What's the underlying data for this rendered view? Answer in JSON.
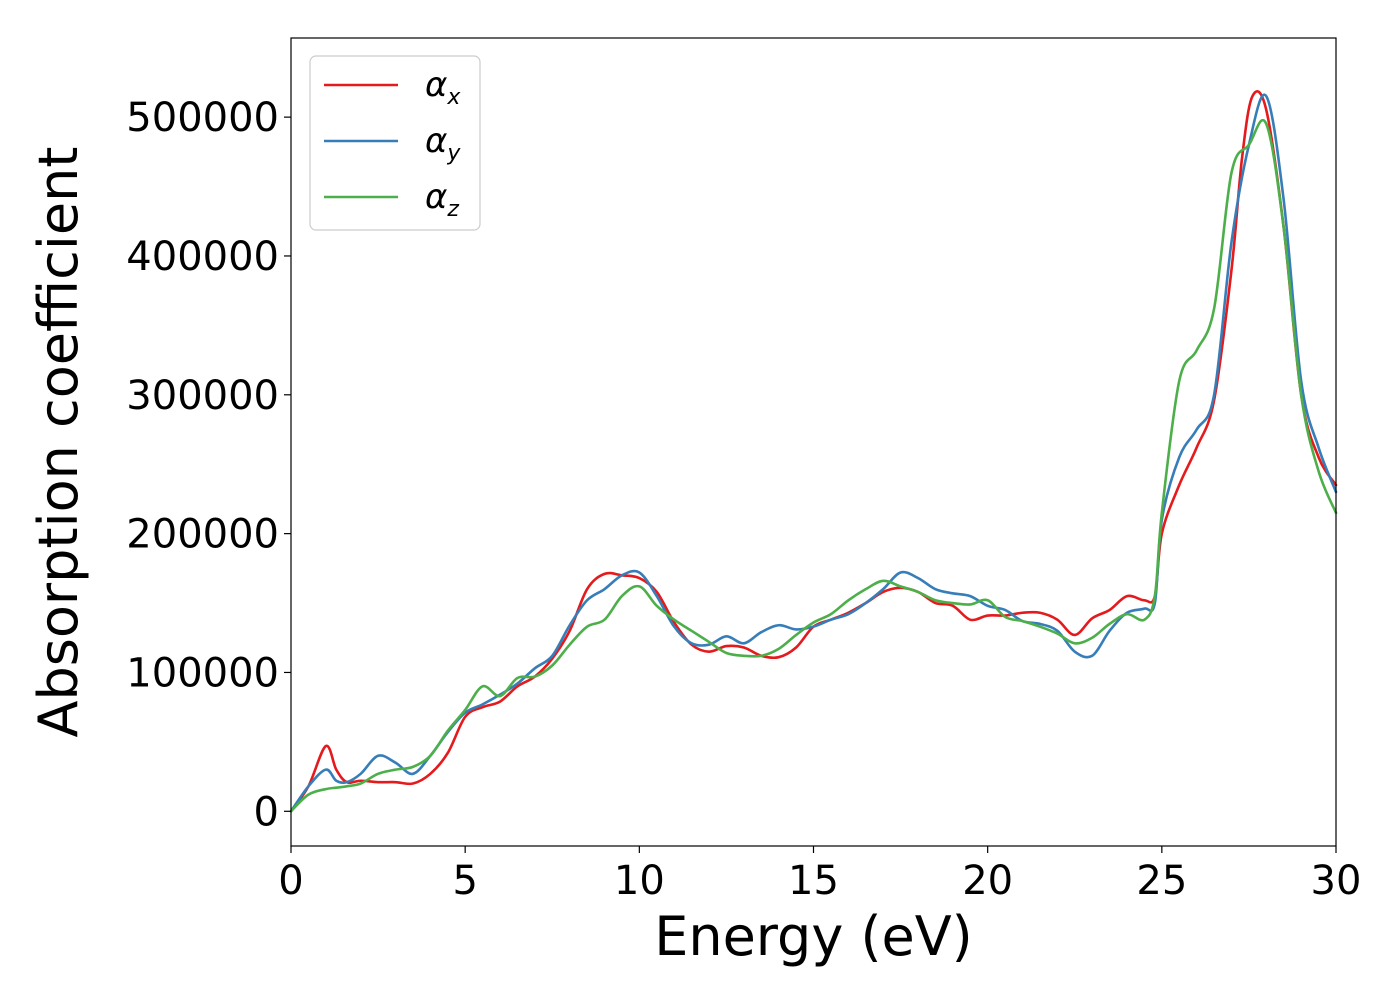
{
  "chart_data": {
    "type": "line",
    "title": "",
    "xlabel": "Energy (eV)",
    "ylabel": "Absorption coefficient",
    "xlim": [
      0,
      30
    ],
    "ylim": [
      -25000,
      557000
    ],
    "xticks": [
      0,
      5,
      10,
      15,
      20,
      25,
      30
    ],
    "yticks": [
      0,
      100000,
      200000,
      300000,
      400000,
      500000
    ],
    "grid": false,
    "legend_position": "top-left",
    "series": [
      {
        "name": "αx",
        "symbol": "α",
        "subscript": "x",
        "color": "#e41a1c",
        "x": [
          0,
          0.5,
          1.0,
          1.3,
          1.6,
          2.0,
          2.5,
          3.0,
          3.5,
          4.0,
          4.5,
          5.0,
          5.5,
          6.0,
          6.5,
          7.0,
          7.5,
          8.0,
          8.5,
          9.0,
          9.5,
          10.0,
          10.5,
          11.0,
          11.5,
          12.0,
          12.5,
          13.0,
          13.5,
          14.0,
          14.5,
          15.0,
          15.5,
          16.0,
          16.5,
          17.0,
          17.5,
          18.0,
          18.5,
          19.0,
          19.5,
          20.0,
          20.5,
          21.0,
          21.5,
          22.0,
          22.5,
          23.0,
          23.5,
          24.0,
          24.5,
          24.8,
          25.0,
          25.5,
          26.0,
          26.5,
          27.0,
          27.3,
          27.6,
          28.0,
          28.5,
          29.0,
          29.5,
          30.0
        ],
        "y": [
          0,
          18000,
          47000,
          30000,
          21000,
          22000,
          21000,
          21000,
          20000,
          27000,
          42000,
          68000,
          75000,
          79000,
          90000,
          97000,
          110000,
          130000,
          160000,
          171000,
          170000,
          168000,
          158000,
          136000,
          120000,
          115000,
          119000,
          118000,
          112000,
          111000,
          118000,
          133000,
          138000,
          143000,
          150000,
          158000,
          161000,
          158000,
          150000,
          148000,
          138000,
          141000,
          141000,
          143000,
          143000,
          138000,
          127000,
          139000,
          145000,
          155000,
          152000,
          155000,
          200000,
          235000,
          262000,
          296000,
          390000,
          470000,
          515000,
          505000,
          420000,
          300000,
          255000,
          235000
        ]
      },
      {
        "name": "αy",
        "symbol": "α",
        "subscript": "y",
        "color": "#377eb8",
        "x": [
          0,
          0.5,
          1.0,
          1.3,
          1.6,
          2.0,
          2.5,
          3.0,
          3.5,
          4.0,
          4.5,
          5.0,
          5.5,
          6.0,
          6.5,
          7.0,
          7.5,
          8.0,
          8.5,
          9.0,
          9.5,
          10.0,
          10.5,
          11.0,
          11.5,
          12.0,
          12.5,
          13.0,
          13.5,
          14.0,
          14.5,
          15.0,
          15.5,
          16.0,
          16.5,
          17.0,
          17.5,
          18.0,
          18.5,
          19.0,
          19.5,
          20.0,
          20.5,
          21.0,
          21.5,
          22.0,
          22.5,
          23.0,
          23.5,
          24.0,
          24.5,
          24.8,
          25.0,
          25.5,
          26.0,
          26.5,
          27.0,
          27.5,
          28.0,
          28.5,
          29.0,
          29.5,
          30.0
        ],
        "y": [
          0,
          18000,
          30000,
          22000,
          21000,
          27000,
          40000,
          35000,
          27000,
          40000,
          57000,
          71000,
          77000,
          84000,
          92000,
          103000,
          112000,
          134000,
          152000,
          160000,
          170000,
          172000,
          155000,
          133000,
          121000,
          120000,
          126000,
          121000,
          129000,
          134000,
          131000,
          133000,
          138000,
          142000,
          150000,
          160000,
          172000,
          168000,
          160000,
          157000,
          155000,
          148000,
          145000,
          137000,
          135000,
          130000,
          115000,
          112000,
          130000,
          143000,
          146000,
          150000,
          210000,
          255000,
          275000,
          300000,
          410000,
          480000,
          515000,
          440000,
          310000,
          262000,
          230000
        ]
      },
      {
        "name": "αz",
        "symbol": "α",
        "subscript": "z",
        "color": "#4daf4a",
        "x": [
          0,
          0.5,
          1.0,
          1.3,
          1.6,
          2.0,
          2.5,
          3.0,
          3.5,
          4.0,
          4.5,
          5.0,
          5.5,
          6.0,
          6.5,
          7.0,
          7.5,
          8.0,
          8.5,
          9.0,
          9.5,
          10.0,
          10.5,
          11.0,
          11.5,
          12.0,
          12.5,
          13.0,
          13.5,
          14.0,
          14.5,
          15.0,
          15.5,
          16.0,
          16.5,
          17.0,
          17.5,
          18.0,
          18.5,
          19.0,
          19.5,
          20.0,
          20.5,
          21.0,
          21.5,
          22.0,
          22.5,
          23.0,
          23.5,
          24.0,
          24.5,
          24.8,
          25.0,
          25.5,
          26.0,
          26.5,
          27.0,
          27.5,
          28.0,
          28.5,
          29.0,
          29.5,
          30.0
        ],
        "y": [
          0,
          12000,
          16000,
          17000,
          18000,
          20000,
          27000,
          30000,
          32000,
          40000,
          58000,
          73000,
          90000,
          83000,
          96000,
          97000,
          105000,
          120000,
          133000,
          138000,
          155000,
          162000,
          148000,
          138000,
          130000,
          122000,
          114000,
          112000,
          112000,
          117000,
          127000,
          136000,
          142000,
          152000,
          160000,
          166000,
          162000,
          158000,
          152000,
          150000,
          149000,
          152000,
          140000,
          137000,
          133000,
          128000,
          121000,
          125000,
          135000,
          142000,
          138000,
          155000,
          215000,
          310000,
          332000,
          362000,
          460000,
          480000,
          495000,
          420000,
          300000,
          245000,
          215000
        ]
      }
    ]
  }
}
